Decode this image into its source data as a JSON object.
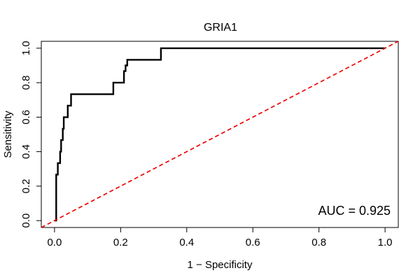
{
  "chart_data": {
    "type": "line",
    "title": "GRIA1",
    "xlabel": "1 − Specificity",
    "ylabel": "Sensitivity",
    "xlim": [
      -0.04,
      1.04
    ],
    "ylim": [
      -0.04,
      1.04
    ],
    "x_ticks": [
      0.0,
      0.2,
      0.4,
      0.6,
      0.8,
      1.0
    ],
    "x_tick_labels": [
      "0.0",
      "0.2",
      "0.4",
      "0.6",
      "0.8",
      "1.0"
    ],
    "y_ticks": [
      0.0,
      0.2,
      0.4,
      0.6,
      0.8,
      1.0
    ],
    "y_tick_labels": [
      "0.0",
      "0.2",
      "0.4",
      "0.6",
      "0.8",
      "1.0"
    ],
    "grid": false,
    "annotation": "AUC = 0.925",
    "series": [
      {
        "color": "#000000",
        "style": "solid",
        "x": [
          0.0,
          0.005,
          0.005,
          0.01,
          0.01,
          0.017,
          0.017,
          0.02,
          0.02,
          0.025,
          0.025,
          0.028,
          0.028,
          0.04,
          0.04,
          0.05,
          0.05,
          0.178,
          0.178,
          0.21,
          0.21,
          0.215,
          0.215,
          0.22,
          0.22,
          0.322,
          0.322,
          1.0
        ],
        "y": [
          0.0,
          0.0,
          0.267,
          0.267,
          0.333,
          0.333,
          0.4,
          0.4,
          0.467,
          0.467,
          0.533,
          0.533,
          0.6,
          0.6,
          0.667,
          0.667,
          0.733,
          0.733,
          0.8,
          0.8,
          0.867,
          0.867,
          0.9,
          0.9,
          0.933,
          0.933,
          1.0,
          1.0
        ]
      },
      {
        "color": "#ee0000",
        "style": "dashed",
        "x": [
          -0.04,
          1.04
        ],
        "y": [
          -0.04,
          1.04
        ]
      }
    ]
  }
}
